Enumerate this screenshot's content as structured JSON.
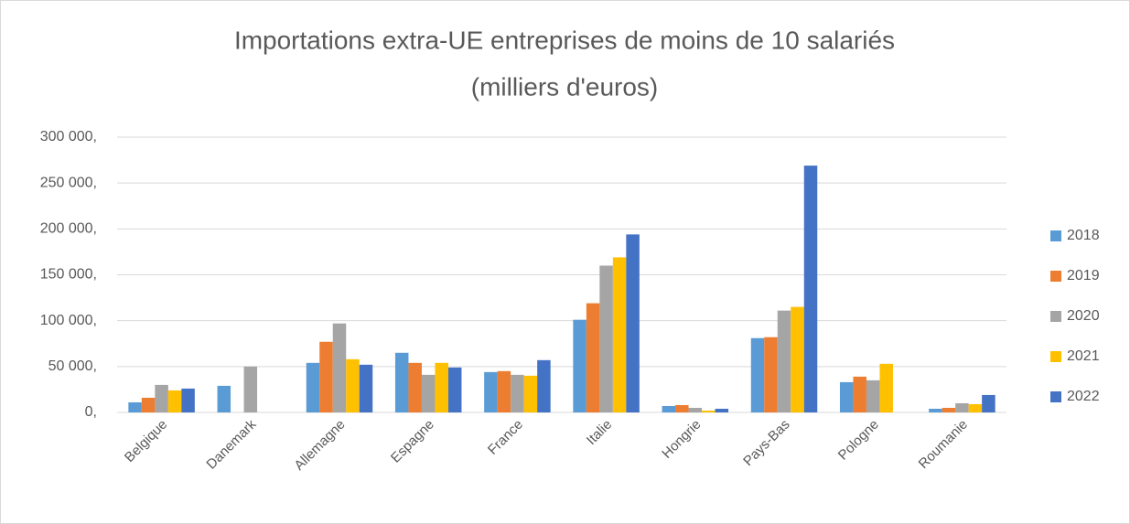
{
  "chart_data": {
    "type": "bar",
    "title": [
      "Importations extra-UE entreprises de moins de 10 salariés",
      "(milliers d'euros)"
    ],
    "categories": [
      "Belgique",
      "Danemark",
      "Allemagne",
      "Espagne",
      "France",
      "Italie",
      "Hongrie",
      "Pays-Bas",
      "Pologne",
      "Roumanie"
    ],
    "series": [
      {
        "name": "2018",
        "color": "#5b9bd5",
        "values": [
          11000,
          29000,
          54000,
          65000,
          44000,
          101000,
          7000,
          81000,
          33000,
          4000
        ]
      },
      {
        "name": "2019",
        "color": "#ed7d31",
        "values": [
          16000,
          null,
          77000,
          54000,
          45000,
          119000,
          8000,
          82000,
          39000,
          5000
        ]
      },
      {
        "name": "2020",
        "color": "#a5a5a5",
        "values": [
          30000,
          50000,
          97000,
          41000,
          41000,
          160000,
          5000,
          111000,
          35000,
          10000
        ]
      },
      {
        "name": "2021",
        "color": "#ffc000",
        "values": [
          24000,
          null,
          58000,
          54000,
          40000,
          169000,
          2000,
          115000,
          53000,
          9000
        ]
      },
      {
        "name": "2022",
        "color": "#4472c4",
        "values": [
          26000,
          null,
          52000,
          49000,
          57000,
          194000,
          4000,
          269000,
          null,
          19000
        ]
      }
    ],
    "ylim": [
      0,
      300000
    ],
    "yticks": [
      {
        "value": 0,
        "label": "0,"
      },
      {
        "value": 50000,
        "label": "50 000,"
      },
      {
        "value": 100000,
        "label": "100 000,"
      },
      {
        "value": 150000,
        "label": "150 000,"
      },
      {
        "value": 200000,
        "label": "200 000,"
      },
      {
        "value": 250000,
        "label": "250 000,"
      },
      {
        "value": 300000,
        "label": "300 000,"
      }
    ],
    "grid": true,
    "legend": "right"
  }
}
